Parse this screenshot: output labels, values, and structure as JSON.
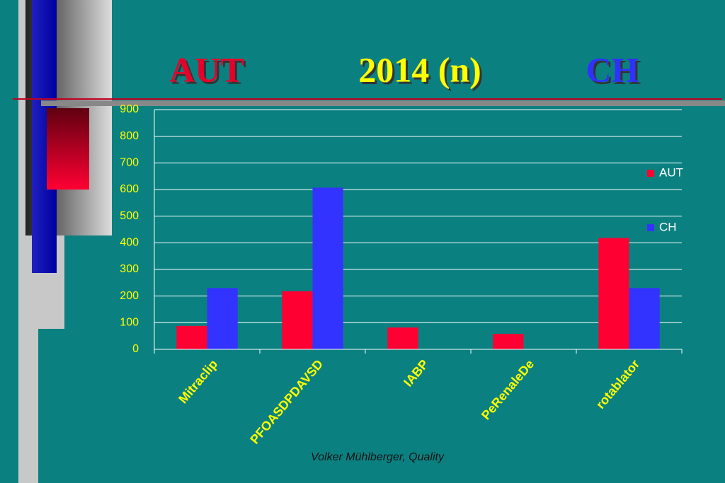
{
  "chart_data": {
    "type": "bar",
    "title": [
      "AUT",
      "2014  (n)",
      "CH"
    ],
    "title_colors": [
      "#e8002a",
      "#ffff00",
      "#3030ff"
    ],
    "categories": [
      "Mitraclip",
      "PFOASDPDAVSD",
      "IABP",
      "PeRenaleDe",
      "rotablator"
    ],
    "series": [
      {
        "name": "AUT",
        "color": "#ff0033",
        "values": [
          88,
          218,
          82,
          58,
          418
        ]
      },
      {
        "name": "CH",
        "color": "#3333ff",
        "values": [
          230,
          607,
          null,
          null,
          230
        ]
      }
    ],
    "ylim": [
      0,
      900
    ],
    "yticks": [
      0,
      100,
      200,
      300,
      400,
      500,
      600,
      700,
      800,
      900
    ],
    "grid": true,
    "legend": "right",
    "footer": "Volker Mühlberger, Quality"
  }
}
